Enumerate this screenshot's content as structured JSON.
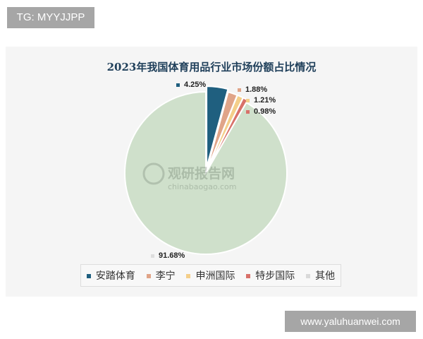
{
  "overlay": {
    "tg_label": "TG: MYYJJPP",
    "site_label": "www.yaluhuanwei.com"
  },
  "watermark": {
    "name": "观研报告网",
    "url": "chinabaogao.com"
  },
  "chart_data": {
    "type": "pie",
    "title": "2023年我国体育用品行业市场份额占比情况",
    "categories": [
      "安踏体育",
      "李宁",
      "申洲国际",
      "特步国际",
      "其他"
    ],
    "values": [
      4.25,
      1.88,
      1.21,
      0.98,
      91.68
    ],
    "data_labels": [
      "4.25%",
      "1.88%",
      "1.21%",
      "0.98%",
      "91.68%"
    ],
    "colors": [
      "#1f5f7f",
      "#e0a488",
      "#f4cf8a",
      "#d8716a",
      "#cfe0cb"
    ],
    "start_angle": "top",
    "direction": "clockwise",
    "legend_position": "bottom"
  }
}
